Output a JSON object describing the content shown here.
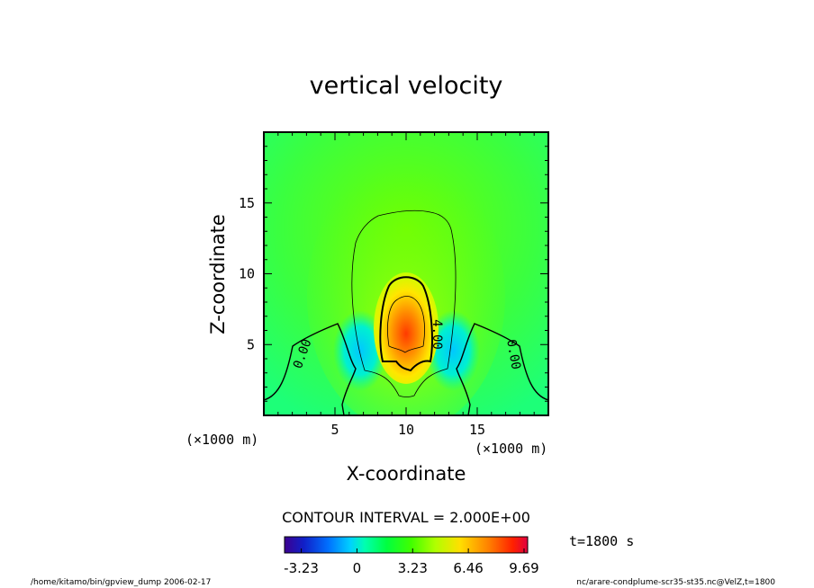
{
  "chart_data": {
    "type": "heatmap",
    "title": "vertical velocity",
    "xlabel": "X-coordinate",
    "ylabel": "Z-coordinate",
    "x_unit_label": "(×1000 m)",
    "y_unit_label": "(×1000 m)",
    "xlim": [
      0,
      20
    ],
    "ylim": [
      0,
      20
    ],
    "x_ticks": [
      5,
      10,
      15
    ],
    "y_ticks": [
      5,
      10,
      15
    ],
    "contour_labels": [
      "0.00",
      "0.00",
      "4.00"
    ],
    "contour_interval_text": "CONTOUR INTERVAL = 2.000E+00",
    "time_text": "t=1800 s",
    "colorbar": {
      "range": [
        -4.2,
        9.9
      ],
      "ticks": [
        "-3.23",
        "0",
        "3.23",
        "6.46",
        "9.69"
      ],
      "tick_values": [
        -3.23,
        0,
        3.23,
        6.46,
        9.69
      ]
    },
    "field_maximum": 9.69
  },
  "footer": {
    "left": "/home/kitamo/bin/gpview_dump  2006-02-17",
    "right": "nc/arare-condplume-scr35-st35.nc@VelZ,t=1800"
  },
  "colors": {
    "frame": "#000000",
    "background": "#00ff7f"
  }
}
